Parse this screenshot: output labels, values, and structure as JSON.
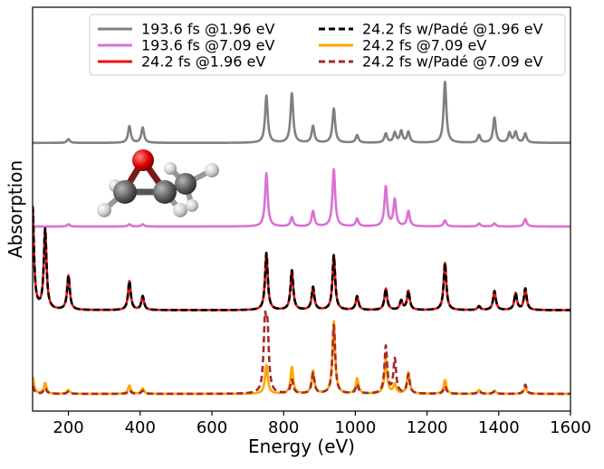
{
  "chart_data": {
    "type": "line",
    "xlabel": "Energy (eV)",
    "ylabel": "Absorption",
    "xlim": [
      100,
      1600
    ],
    "xticks": [
      200,
      400,
      600,
      800,
      1000,
      1200,
      1400,
      1600
    ],
    "yticks": [],
    "grid": false,
    "legend": {
      "placement": "top-right",
      "columns": 2
    },
    "series": [
      {
        "name": "193.6 fs @1.96 eV",
        "color": "#808080",
        "dash": "solid",
        "group": 1,
        "offset": 3.3,
        "peaks": [
          {
            "x": 200,
            "y": 0.05
          },
          {
            "x": 370,
            "y": 0.22
          },
          {
            "x": 407,
            "y": 0.2
          },
          {
            "x": 752,
            "y": 0.62
          },
          {
            "x": 823,
            "y": 0.65
          },
          {
            "x": 882,
            "y": 0.22
          },
          {
            "x": 940,
            "y": 0.45
          },
          {
            "x": 1005,
            "y": 0.1
          },
          {
            "x": 1085,
            "y": 0.12
          },
          {
            "x": 1110,
            "y": 0.13
          },
          {
            "x": 1128,
            "y": 0.15
          },
          {
            "x": 1148,
            "y": 0.14
          },
          {
            "x": 1250,
            "y": 0.8
          },
          {
            "x": 1345,
            "y": 0.1
          },
          {
            "x": 1388,
            "y": 0.33
          },
          {
            "x": 1430,
            "y": 0.13
          },
          {
            "x": 1447,
            "y": 0.14
          },
          {
            "x": 1474,
            "y": 0.12
          }
        ]
      },
      {
        "name": "193.6 fs @7.09 eV",
        "color": "#da70d6",
        "dash": "solid",
        "group": 2,
        "offset": 2.2,
        "peaks": [
          {
            "x": 200,
            "y": 0.03
          },
          {
            "x": 370,
            "y": 0.03
          },
          {
            "x": 407,
            "y": 0.03
          },
          {
            "x": 752,
            "y": 0.7
          },
          {
            "x": 823,
            "y": 0.12
          },
          {
            "x": 882,
            "y": 0.2
          },
          {
            "x": 940,
            "y": 0.75
          },
          {
            "x": 1005,
            "y": 0.1
          },
          {
            "x": 1085,
            "y": 0.52
          },
          {
            "x": 1110,
            "y": 0.35
          },
          {
            "x": 1148,
            "y": 0.2
          },
          {
            "x": 1250,
            "y": 0.08
          },
          {
            "x": 1345,
            "y": 0.04
          },
          {
            "x": 1388,
            "y": 0.04
          },
          {
            "x": 1474,
            "y": 0.1
          }
        ]
      },
      {
        "name": "24.2 fs @1.96 eV",
        "color": "#ee1111",
        "dash": "solid",
        "group": 3,
        "offset": 1.1,
        "peaks": [
          {
            "x": 100,
            "y": 1.35
          },
          {
            "x": 135,
            "y": 1.05
          },
          {
            "x": 200,
            "y": 0.45
          },
          {
            "x": 370,
            "y": 0.38
          },
          {
            "x": 407,
            "y": 0.18
          },
          {
            "x": 752,
            "y": 0.75
          },
          {
            "x": 823,
            "y": 0.52
          },
          {
            "x": 882,
            "y": 0.3
          },
          {
            "x": 940,
            "y": 0.72
          },
          {
            "x": 1005,
            "y": 0.18
          },
          {
            "x": 1085,
            "y": 0.28
          },
          {
            "x": 1128,
            "y": 0.12
          },
          {
            "x": 1148,
            "y": 0.25
          },
          {
            "x": 1250,
            "y": 0.62
          },
          {
            "x": 1345,
            "y": 0.05
          },
          {
            "x": 1388,
            "y": 0.25
          },
          {
            "x": 1447,
            "y": 0.22
          },
          {
            "x": 1474,
            "y": 0.28
          }
        ]
      },
      {
        "name": "24.2 fs w/Padé @1.96 eV",
        "color": "#000000",
        "dash": "dashed",
        "group": 3,
        "offset": 1.1,
        "peaks": [
          {
            "x": 100,
            "y": 1.35
          },
          {
            "x": 135,
            "y": 1.05
          },
          {
            "x": 200,
            "y": 0.45
          },
          {
            "x": 370,
            "y": 0.38
          },
          {
            "x": 407,
            "y": 0.18
          },
          {
            "x": 752,
            "y": 0.75
          },
          {
            "x": 823,
            "y": 0.52
          },
          {
            "x": 882,
            "y": 0.3
          },
          {
            "x": 940,
            "y": 0.72
          },
          {
            "x": 1005,
            "y": 0.18
          },
          {
            "x": 1085,
            "y": 0.28
          },
          {
            "x": 1128,
            "y": 0.12
          },
          {
            "x": 1148,
            "y": 0.25
          },
          {
            "x": 1250,
            "y": 0.62
          },
          {
            "x": 1345,
            "y": 0.05
          },
          {
            "x": 1388,
            "y": 0.25
          },
          {
            "x": 1447,
            "y": 0.22
          },
          {
            "x": 1474,
            "y": 0.28
          }
        ]
      },
      {
        "name": "24.2 fs @7.09 eV",
        "color": "#ffa500",
        "dash": "solid",
        "group": 4,
        "offset": 0.0,
        "peaks": [
          {
            "x": 100,
            "y": 0.22
          },
          {
            "x": 135,
            "y": 0.14
          },
          {
            "x": 200,
            "y": 0.05
          },
          {
            "x": 370,
            "y": 0.11
          },
          {
            "x": 407,
            "y": 0.07
          },
          {
            "x": 752,
            "y": 0.38
          },
          {
            "x": 823,
            "y": 0.35
          },
          {
            "x": 882,
            "y": 0.3
          },
          {
            "x": 940,
            "y": 0.95
          },
          {
            "x": 1005,
            "y": 0.2
          },
          {
            "x": 1085,
            "y": 0.45
          },
          {
            "x": 1110,
            "y": 0.12
          },
          {
            "x": 1148,
            "y": 0.28
          },
          {
            "x": 1250,
            "y": 0.18
          },
          {
            "x": 1345,
            "y": 0.05
          },
          {
            "x": 1388,
            "y": 0.04
          },
          {
            "x": 1474,
            "y": 0.08
          }
        ]
      },
      {
        "name": "24.2 fs w/Padé @7.09 eV",
        "color": "#a52a2a",
        "dash": "dashed",
        "group": 4,
        "offset": 0.0,
        "peaks": [
          {
            "x": 100,
            "y": 0.1
          },
          {
            "x": 135,
            "y": 0.08
          },
          {
            "x": 200,
            "y": 0.03
          },
          {
            "x": 370,
            "y": 0.05
          },
          {
            "x": 407,
            "y": 0.04
          },
          {
            "x": 748,
            "y": 0.85
          },
          {
            "x": 755,
            "y": 0.75
          },
          {
            "x": 823,
            "y": 0.18
          },
          {
            "x": 882,
            "y": 0.27
          },
          {
            "x": 940,
            "y": 0.9
          },
          {
            "x": 1005,
            "y": 0.12
          },
          {
            "x": 1085,
            "y": 0.62
          },
          {
            "x": 1110,
            "y": 0.45
          },
          {
            "x": 1148,
            "y": 0.25
          },
          {
            "x": 1250,
            "y": 0.1
          },
          {
            "x": 1345,
            "y": 0.04
          },
          {
            "x": 1388,
            "y": 0.03
          },
          {
            "x": 1474,
            "y": 0.12
          }
        ]
      }
    ]
  },
  "inset": {
    "name": "molecule-rendering",
    "atom_colors": {
      "oxygen": "#ee0000",
      "carbon": "#5a5a5a",
      "hydrogen": "#d0d0d0"
    }
  }
}
